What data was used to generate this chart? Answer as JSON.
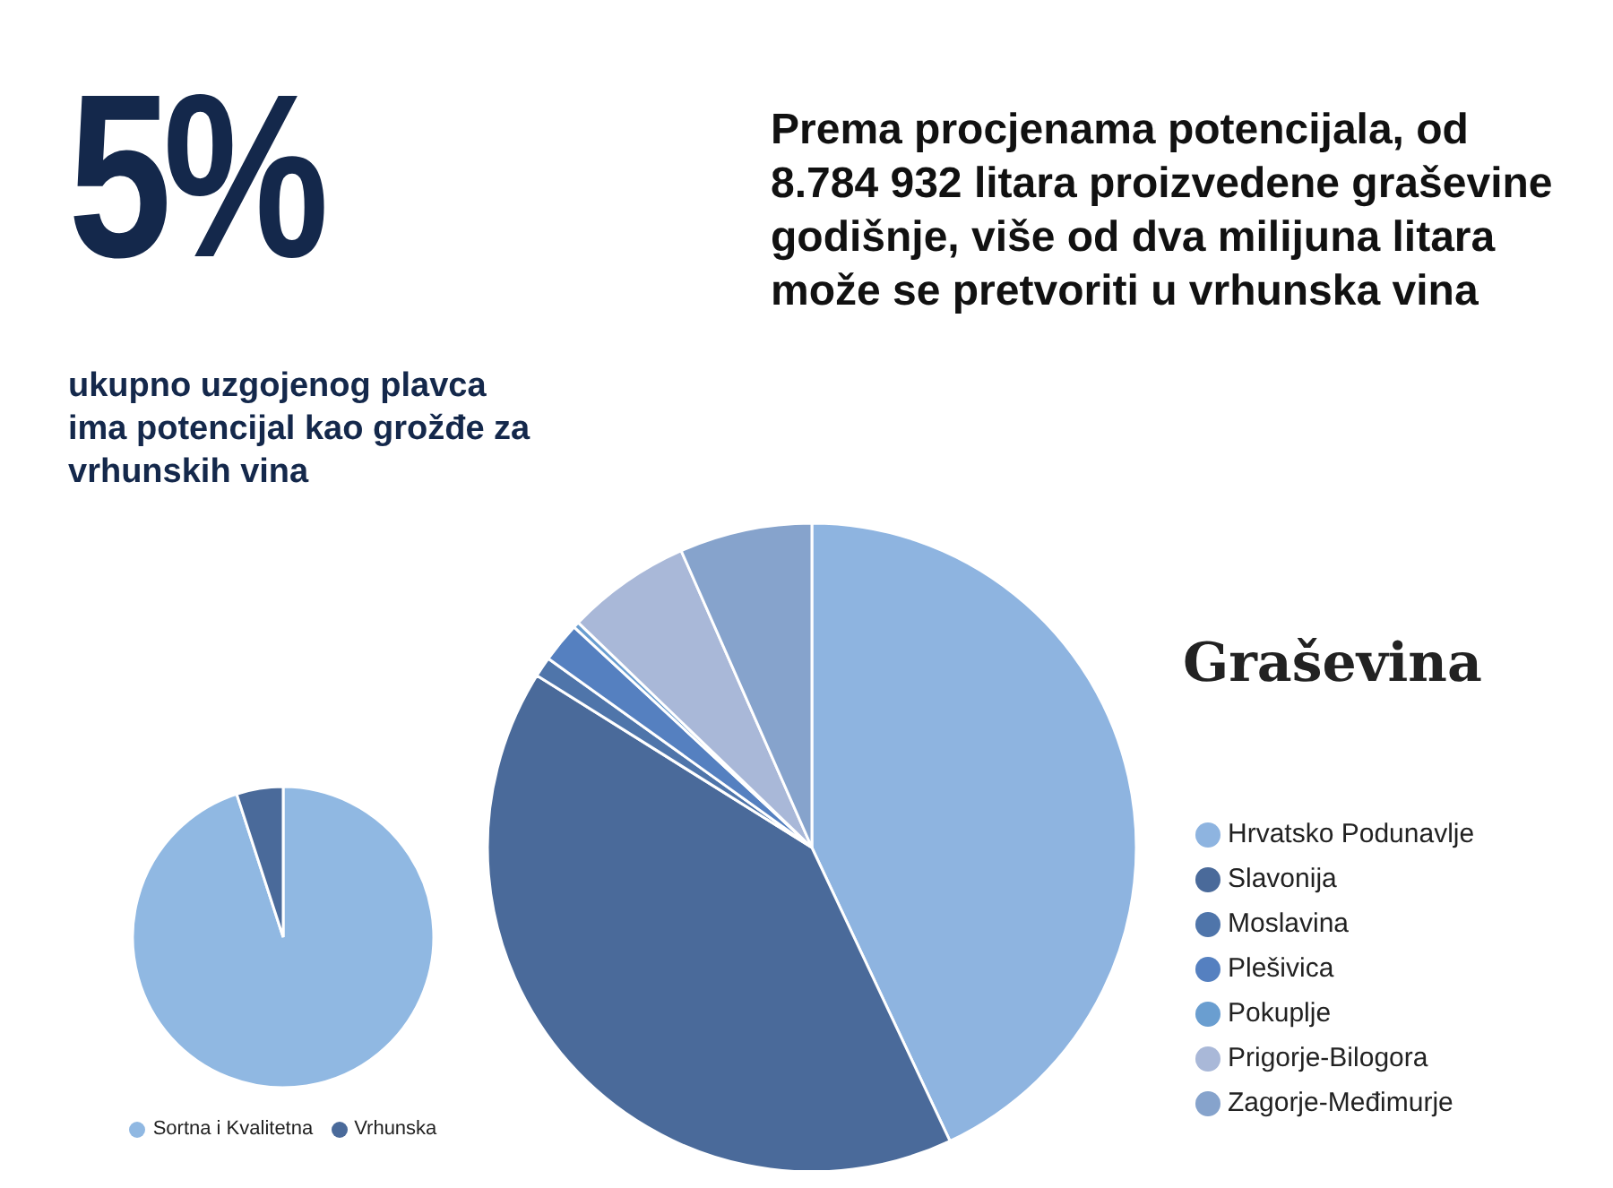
{
  "chart_data": [
    {
      "type": "pie",
      "title": "5%",
      "subtitle": "ukupno uzgojenog plavca ima potencijal kao grožđe za vrhunskih vina",
      "categories": [
        "Sortna i Kvalitetna",
        "Vrhunska"
      ],
      "values": [
        95,
        5
      ],
      "colors": [
        "#90b8e2",
        "#4a6a9a"
      ],
      "legend": "bottom"
    },
    {
      "type": "pie",
      "title": "Graševina",
      "annotations": [
        "Prema procjenama potencijala, od 8.784 932 litara proizvedene graševine godišnje, više od dva milijuna litara može se pretvoriti u vrhunska vina"
      ],
      "categories": [
        "Hrvatsko Podunavlje",
        "Slavonija",
        "Moslavina",
        "Plešivica",
        "Pokuplje",
        "Prigorje-Bilogora",
        "Zagorje-Međimurje"
      ],
      "values": [
        43.0,
        40.9,
        1.0,
        2.0,
        0.3,
        6.2,
        6.6
      ],
      "colors": [
        "#8eb4e0",
        "#4a6a9a",
        "#4f75aa",
        "#5580c0",
        "#6a9ed0",
        "#a9b8d8",
        "#86a3cc"
      ],
      "legend": "right"
    }
  ]
}
